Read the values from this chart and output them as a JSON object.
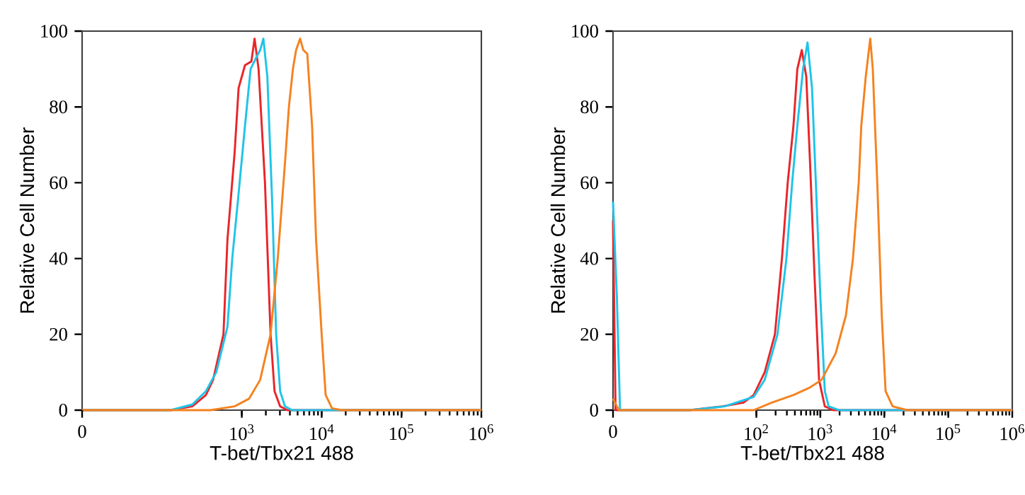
{
  "chart_data": [
    {
      "type": "line",
      "ylabel": "Relative Cell Number",
      "xlabel": "T-bet/Tbx21 488",
      "log": "x",
      "xlim": [
        0,
        1000000
      ],
      "ylim": [
        0,
        100
      ],
      "xticks": [
        0,
        {
          "value": 1000,
          "label": "10$^{3}$"
        },
        {
          "value": 10000,
          "label": "10$^{4}$"
        },
        {
          "value": 100000,
          "label": "10$^{5}$"
        },
        {
          "value": 1000000,
          "label": "10$^{6}$"
        }
      ],
      "yticks": [
        0,
        20,
        40,
        60,
        80,
        100
      ],
      "series": [
        {
          "color": "#e8262a",
          "x": [
            10,
            129,
            240,
            355,
            437,
            589,
            661,
            813,
            912,
            1096,
            1318,
            1445,
            1622,
            1950,
            2291,
            2570,
            3020,
            3715,
            1000000
          ],
          "values": [
            0,
            0,
            1,
            4,
            8,
            20,
            45,
            68,
            85,
            91,
            92,
            98,
            90,
            60,
            20,
            5,
            1,
            0,
            0
          ]
        },
        {
          "color": "#1fc4e8",
          "x": [
            10,
            129,
            240,
            355,
            479,
            661,
            759,
            891,
            1096,
            1288,
            1514,
            1698,
            1862,
            2089,
            2399,
            2692,
            3020,
            3467,
            4266,
            1000000
          ],
          "values": [
            0,
            0,
            1.5,
            5,
            10,
            22,
            40,
            55,
            75,
            90,
            93,
            95,
            98,
            88,
            55,
            20,
            5,
            1,
            0,
            0
          ]
        },
        {
          "color": "#f5821f",
          "x": [
            10,
            407,
            813,
            1230,
            1698,
            2291,
            2818,
            3467,
            3890,
            4365,
            4786,
            5370,
            5888,
            6607,
            7586,
            8511,
            10000,
            11220,
            13490,
            17780,
            1000000
          ],
          "values": [
            0,
            0,
            1,
            3,
            8,
            20,
            40,
            65,
            80,
            90,
            95,
            98,
            95,
            94,
            75,
            45,
            20,
            4,
            0.5,
            0,
            0
          ]
        }
      ]
    },
    {
      "type": "line",
      "ylabel": "Relative Cell Number",
      "xlabel": "T-bet/Tbx21 488",
      "log": "x",
      "xlim": [
        0,
        1000000
      ],
      "ylim": [
        0,
        100
      ],
      "xticks": [
        0,
        {
          "value": 100,
          "label": "10$^{2}$"
        },
        {
          "value": 1000,
          "label": "10$^{3}$"
        },
        {
          "value": 10000,
          "label": "10$^{4}$"
        },
        {
          "value": 100000,
          "label": "10$^{5}$"
        },
        {
          "value": 1000000,
          "label": "10$^{6}$"
        }
      ],
      "yticks": [
        0,
        20,
        40,
        60,
        80,
        100
      ],
      "series": [
        {
          "color": "#e8262a",
          "x": [
            0.575,
            0.63,
            9.1,
            30,
            63,
            91,
            135,
            195,
            251,
            309,
            380,
            437,
            513,
            603,
            692,
            813,
            955,
            1175,
            1585,
            1000000
          ],
          "values": [
            50,
            0,
            0,
            1,
            2,
            4,
            10,
            20,
            40,
            60,
            75,
            90,
            95,
            88,
            65,
            35,
            8,
            1,
            0,
            0
          ]
        },
        {
          "color": "#1fc4e8",
          "x": [
            0.575,
            0.66,
            0.74,
            9.1,
            32,
            91,
            135,
            214,
            295,
            363,
            437,
            537,
            631,
            741,
            851,
            1000,
            1175,
            1349,
            1950,
            1000000
          ],
          "values": [
            55,
            30,
            0,
            0,
            1,
            3.5,
            8,
            20,
            40,
            60,
            75,
            90,
            97,
            85,
            60,
            30,
            5,
            1,
            0,
            0
          ]
        },
        {
          "color": "#f5821f",
          "x": [
            0.575,
            0.71,
            91,
            174,
            380,
            692,
            1047,
            1738,
            2512,
            3236,
            3981,
            4365,
            5129,
            6026,
            6607,
            7762,
            9120,
            10470,
            13490,
            22910,
            1000000
          ],
          "values": [
            3,
            0,
            0,
            2,
            4,
            6,
            8,
            15,
            25,
            40,
            60,
            75,
            88,
            98,
            90,
            60,
            25,
            5,
            1,
            0,
            0
          ]
        }
      ]
    }
  ]
}
